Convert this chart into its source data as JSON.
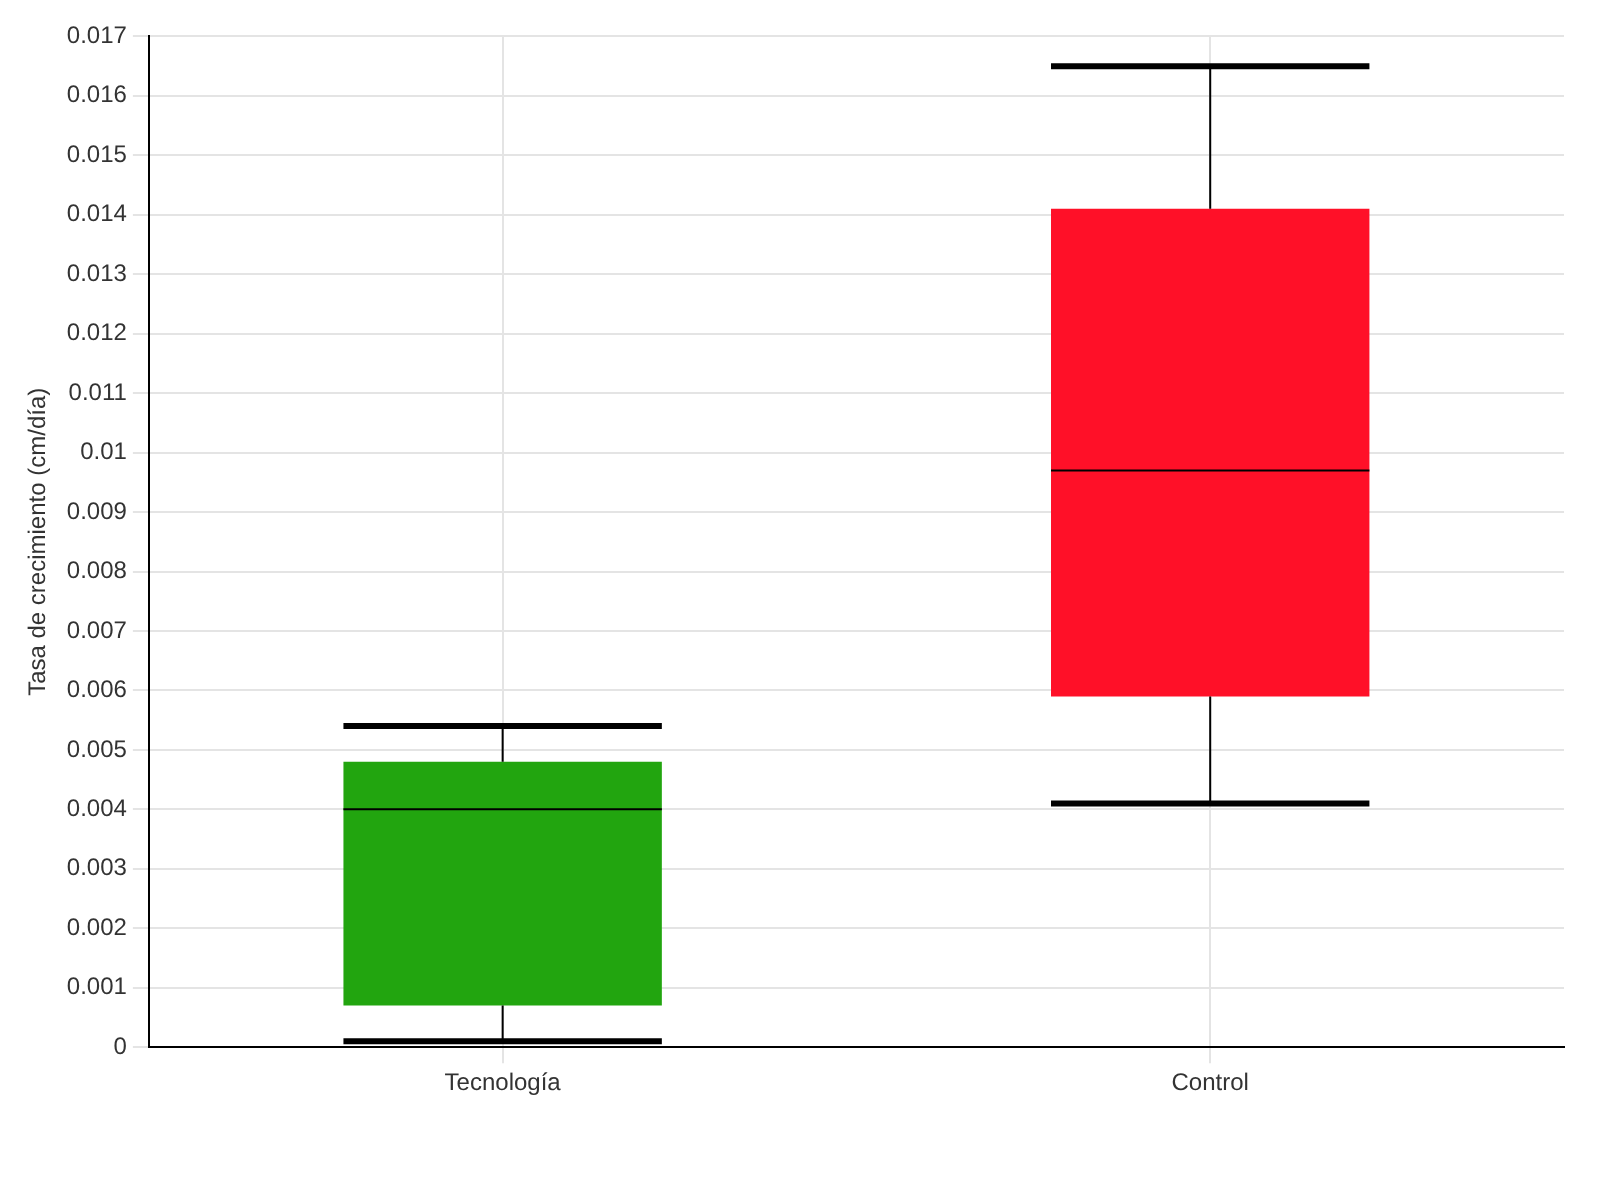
{
  "chart_data": {
    "type": "box",
    "ylabel": "Tasa de crecimiento (cm/día)",
    "categories": [
      "Tecnología",
      "Control"
    ],
    "colors": [
      "#22a50f",
      "#ff1028"
    ],
    "boxes": [
      {
        "low": 0.0001,
        "q1": 0.0007,
        "median": 0.004,
        "q3": 0.0048,
        "high": 0.0054
      },
      {
        "low": 0.0041,
        "q1": 0.0059,
        "median": 0.0097,
        "q3": 0.0141,
        "high": 0.0165
      }
    ],
    "ylim": [
      0,
      0.017
    ],
    "yticks": [
      0,
      0.001,
      0.002,
      0.003,
      0.004,
      0.005,
      0.006,
      0.007,
      0.008,
      0.009,
      0.01,
      0.011,
      0.012,
      0.013,
      0.014,
      0.015,
      0.016,
      0.017
    ],
    "grid": true
  }
}
